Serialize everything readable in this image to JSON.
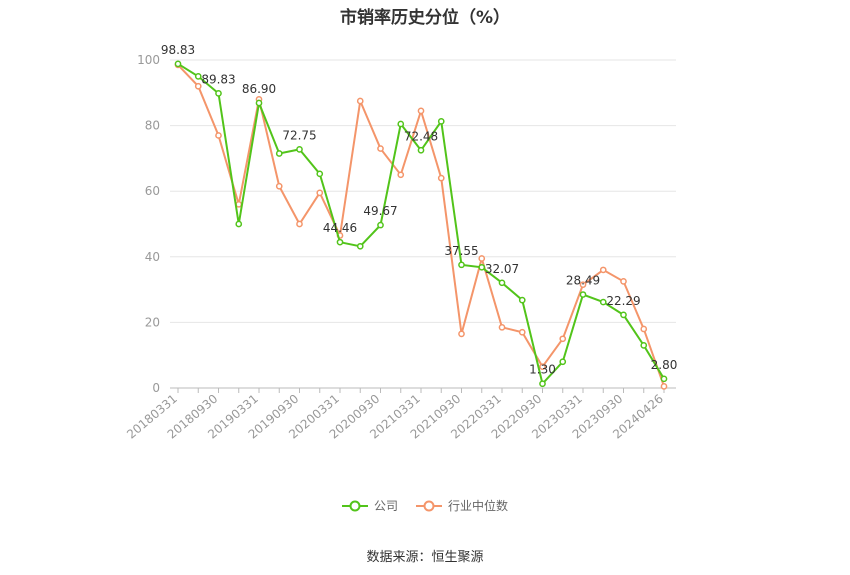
{
  "chart_data": {
    "type": "line",
    "title": "市销率历史分位（%）",
    "ylim": [
      0,
      100
    ],
    "yticks": [
      0,
      20,
      40,
      60,
      80,
      100
    ],
    "x_tick_labels": [
      "20180331",
      "20180930",
      "20190331",
      "20190930",
      "20200331",
      "20200930",
      "20210331",
      "20210930",
      "20220331",
      "20220930",
      "20230331",
      "20230930",
      "20240426"
    ],
    "grid": true,
    "legend_position": "bottom-center",
    "series": [
      {
        "name": "公司",
        "color": "#52c41a",
        "values": [
          98.83,
          95.0,
          89.83,
          50.0,
          86.9,
          71.5,
          72.75,
          65.3,
          44.46,
          43.2,
          49.67,
          80.5,
          72.48,
          81.3,
          37.55,
          36.8,
          32.07,
          26.8,
          1.3,
          8.0,
          28.49,
          26.2,
          22.29,
          13.0,
          2.8
        ],
        "labels": {
          "0": "98.83",
          "2": "89.83",
          "4": "86.90",
          "6": "72.75",
          "8": "44.46",
          "10": "49.67",
          "12": "72.48",
          "14": "37.55",
          "16": "32.07",
          "18": "1.30",
          "20": "28.49",
          "22": "22.29",
          "24": "2.80"
        }
      },
      {
        "name": "行业中位数",
        "color": "#f4956a",
        "values": [
          98.5,
          92.0,
          77.0,
          56.0,
          88.0,
          61.5,
          50.0,
          59.5,
          46.5,
          87.5,
          73.0,
          65.0,
          84.5,
          64.0,
          16.5,
          39.5,
          18.5,
          17.0,
          6.5,
          15.0,
          31.5,
          36.0,
          32.5,
          18.0,
          0.5
        ]
      }
    ]
  },
  "footer": {
    "source": "数据来源：恒生聚源"
  }
}
